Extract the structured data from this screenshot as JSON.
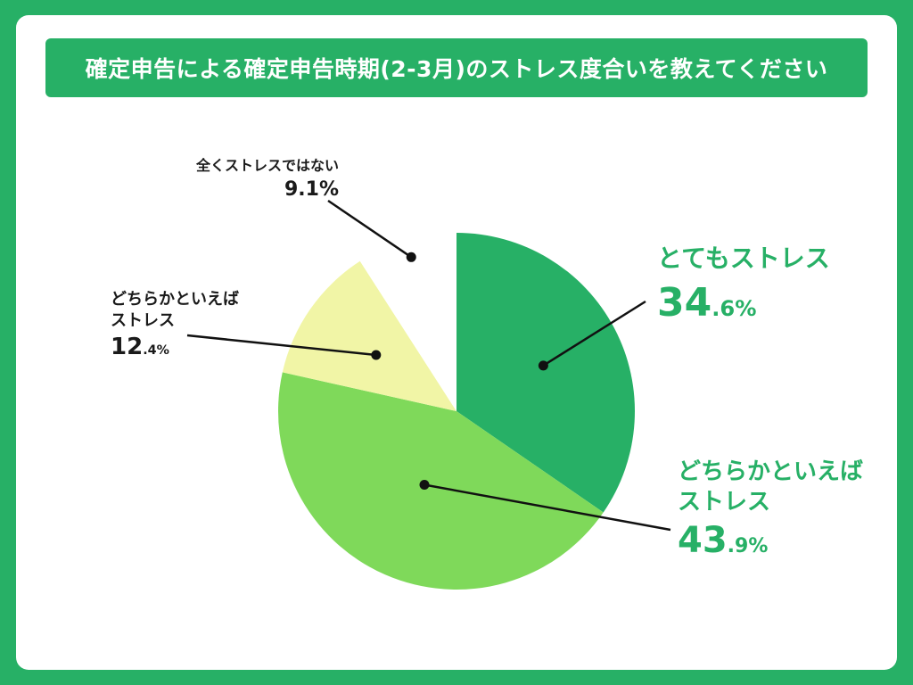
{
  "title": "確定申告による確定申告時期(2-3月)のストレス度合いを教えてください",
  "colors": {
    "background": "#27b066",
    "card": "#ffffff",
    "title_bar": "#27b066",
    "accent_text": "#27b066",
    "dark_text": "#1a1a1a"
  },
  "chart_data": {
    "type": "pie",
    "title": "確定申告による確定申告時期(2-3月)のストレス度合いを教えてください",
    "unit": "%",
    "slices": [
      {
        "label": "とてもストレス",
        "value": 34.6,
        "value_int": "34",
        "value_dec": ".6%",
        "color": "#27b066"
      },
      {
        "label": "どちらかといえばストレス",
        "value": 43.9,
        "value_int": "43",
        "value_dec": ".9%",
        "color": "#7fd95a"
      },
      {
        "label": "どちらかといえばストレス",
        "value": 12.4,
        "value_int": "12",
        "value_dec": ".4%",
        "color": "#f1f5a6"
      },
      {
        "label": "全くストレスではない",
        "value": 9.1,
        "value_int": "9.1%",
        "value_dec": "",
        "color": "#ffffff"
      }
    ],
    "start_angle_deg": 0,
    "direction": "clockwise",
    "legend": "none"
  }
}
